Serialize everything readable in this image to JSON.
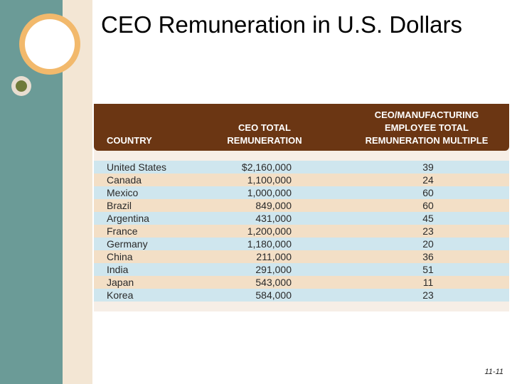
{
  "slide": {
    "title": "CEO Remuneration in U.S. Dollars",
    "number": "11-11"
  },
  "table": {
    "headers": {
      "country": "COUNTRY",
      "remuneration": "CEO TOTAL REMUNERATION",
      "multiple": "CEO/MANUFACTURING EMPLOYEE TOTAL REMUNERATION MULTIPLE"
    },
    "rows": [
      {
        "country": "United States",
        "remuneration": "$2,160,000",
        "multiple": "39"
      },
      {
        "country": "Canada",
        "remuneration": "1,100,000",
        "multiple": "24"
      },
      {
        "country": "Mexico",
        "remuneration": "1,000,000",
        "multiple": "60"
      },
      {
        "country": "Brazil",
        "remuneration": "849,000",
        "multiple": "60"
      },
      {
        "country": "Argentina",
        "remuneration": "431,000",
        "multiple": "45"
      },
      {
        "country": "France",
        "remuneration": "1,200,000",
        "multiple": "23"
      },
      {
        "country": "Germany",
        "remuneration": "1,180,000",
        "multiple": "20"
      },
      {
        "country": "China",
        "remuneration": "211,000",
        "multiple": "36"
      },
      {
        "country": "India",
        "remuneration": "291,000",
        "multiple": "51"
      },
      {
        "country": "Japan",
        "remuneration": "543,000",
        "multiple": "11"
      },
      {
        "country": "Korea",
        "remuneration": "584,000",
        "multiple": "23"
      }
    ]
  },
  "colors": {
    "header_bg": "#6b3613",
    "row_blue": "#cfe6ee",
    "row_tan": "#f3dfc6",
    "accent_teal": "#6b9b97",
    "accent_orange": "#f2b96c",
    "accent_olive": "#6f7a3a"
  }
}
